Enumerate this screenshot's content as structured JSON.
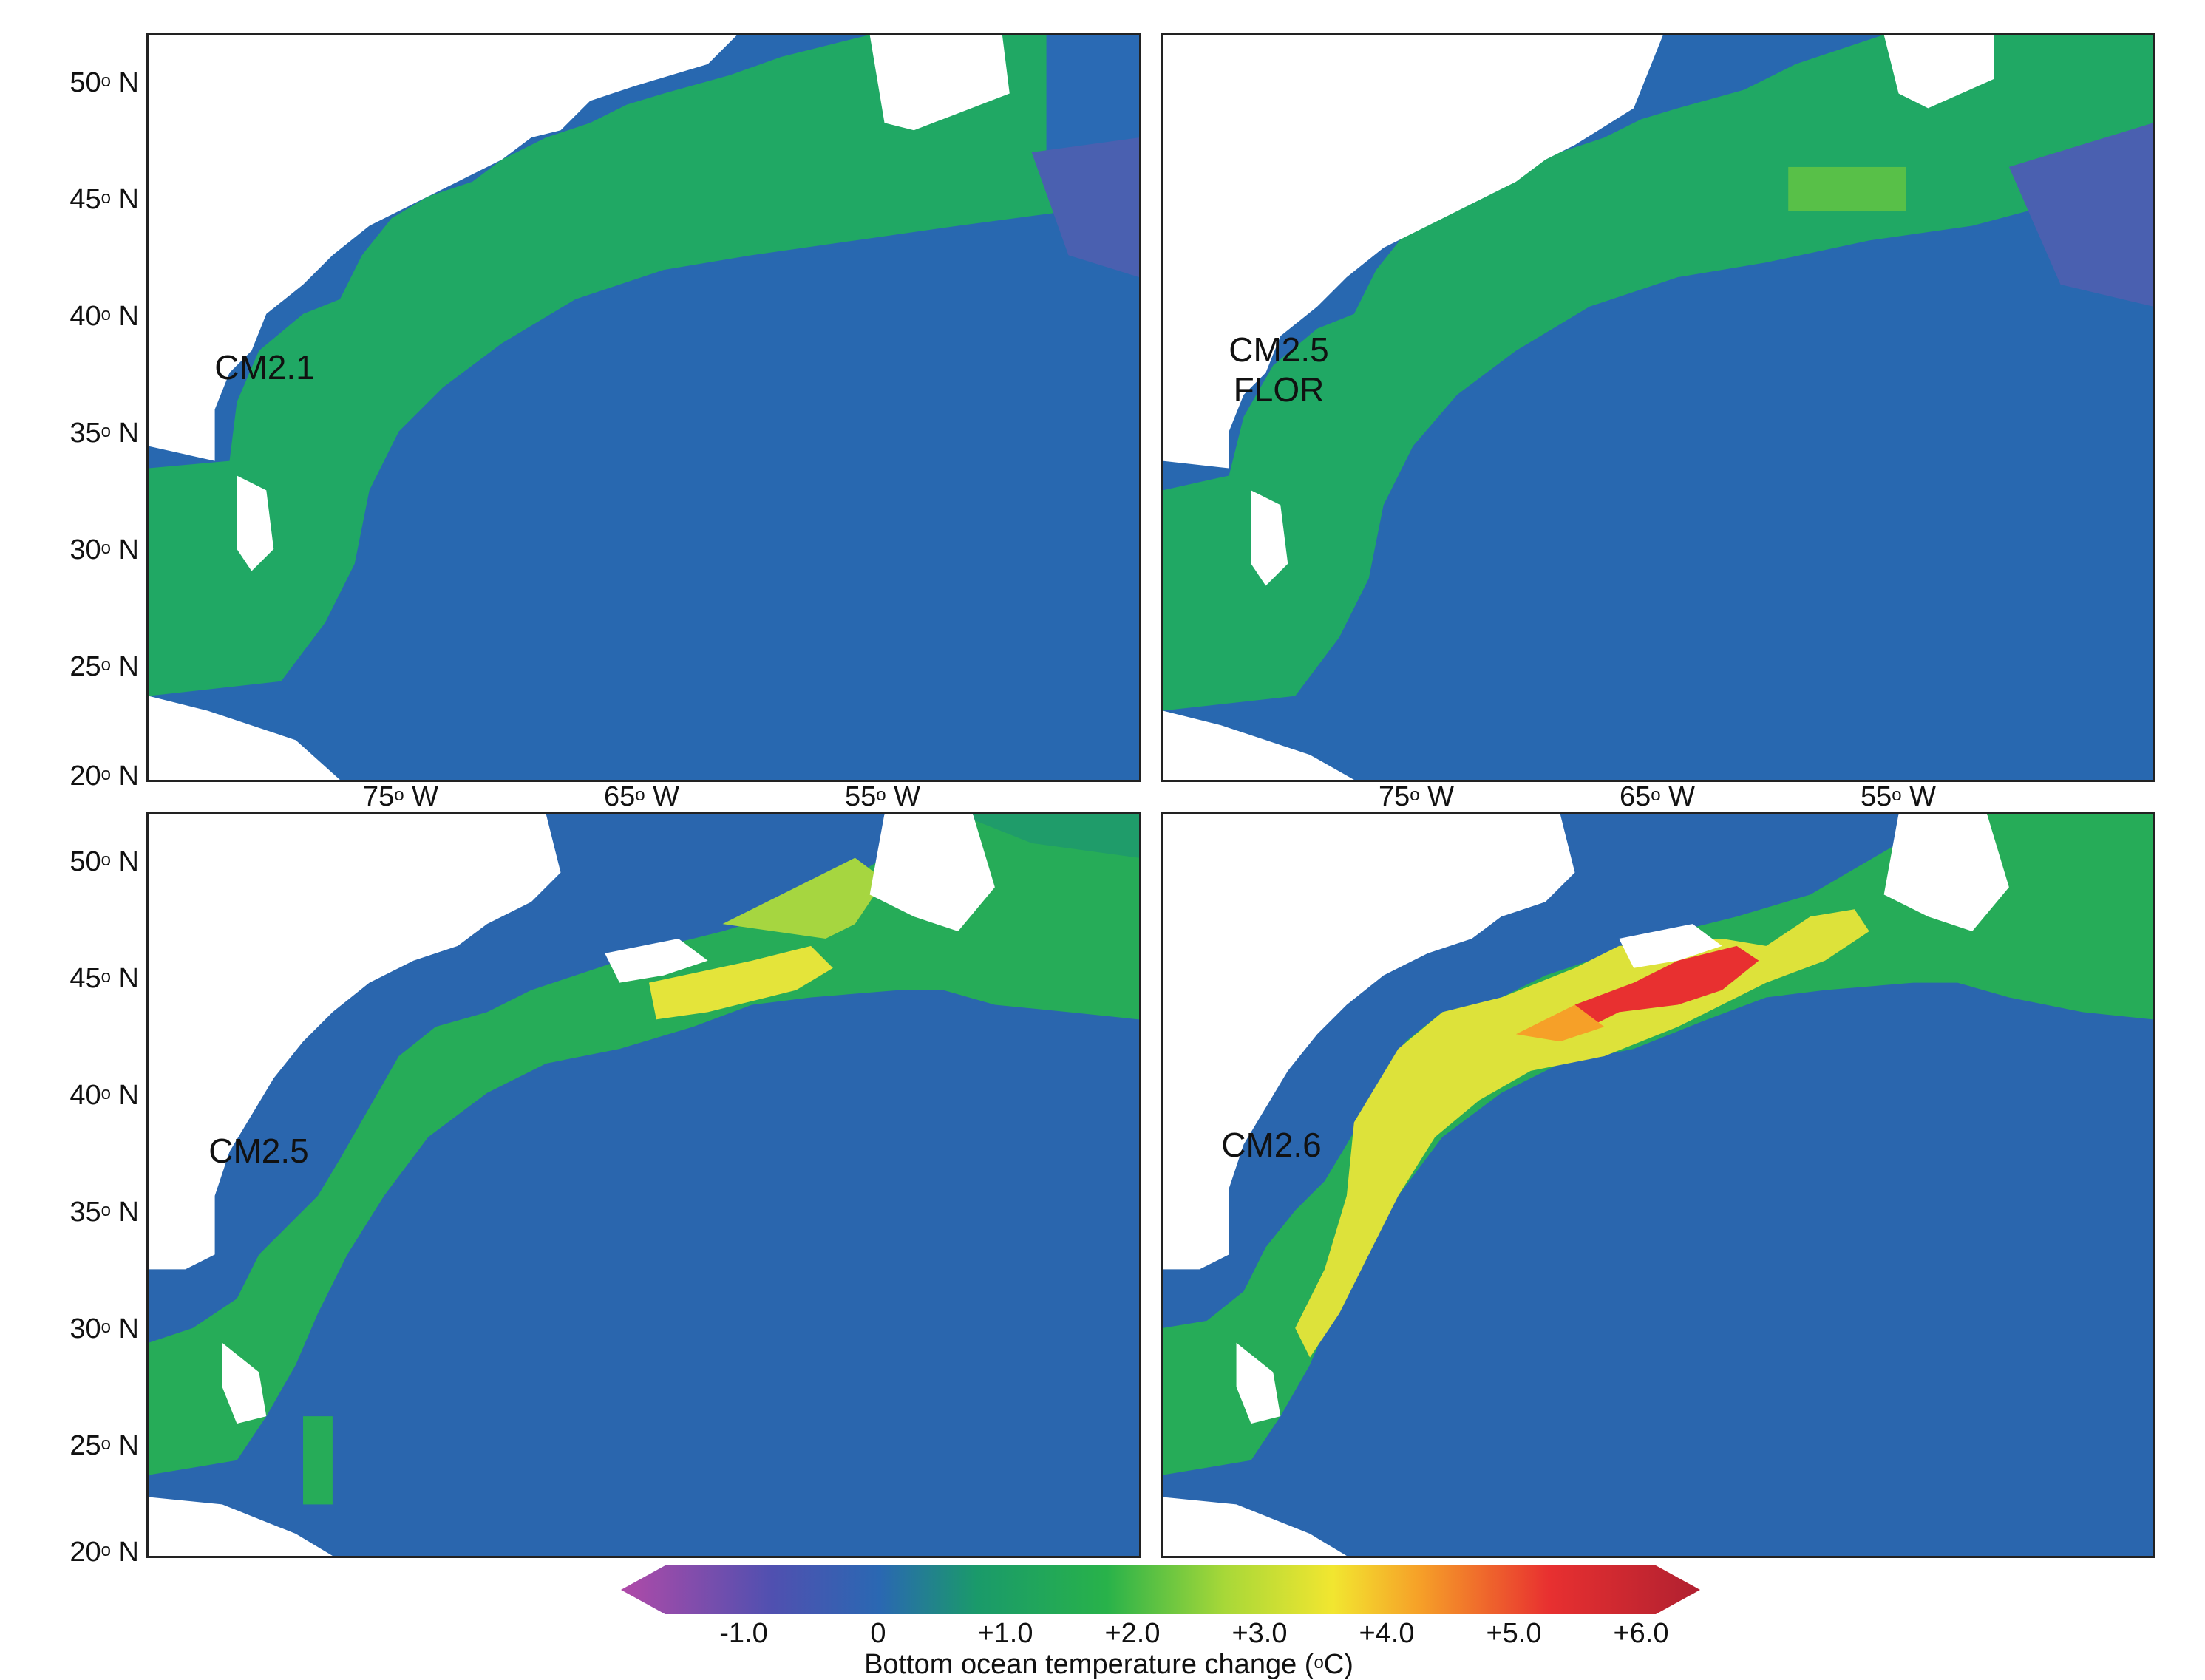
{
  "panels": [
    {
      "id": "cm21",
      "label_lines": [
        "CM2.1"
      ]
    },
    {
      "id": "cm25flor",
      "label_lines": [
        "CM2.5",
        "FLOR"
      ]
    },
    {
      "id": "cm25",
      "label_lines": [
        "CM2.5"
      ]
    },
    {
      "id": "cm26",
      "label_lines": [
        "CM2.6"
      ]
    }
  ],
  "lat_labels": [
    "50",
    "45",
    "40",
    "35",
    "30",
    "25",
    "20"
  ],
  "lat_suffix": "o",
  "lat_unit": " N",
  "lon_labels": [
    "75",
    "65",
    "55"
  ],
  "lon_unit": " W",
  "colorbar": {
    "ticks": [
      "-1.0",
      "0",
      "+1.0",
      "+2.0",
      "+3.0",
      "+4.0",
      "+5.0",
      "+6.0"
    ],
    "title_prefix": "Bottom ocean temperature change (",
    "title_sup": "o",
    "title_suffix": "C)",
    "colors": [
      "#b04aa8",
      "#5050b0",
      "#2a68b2",
      "#1a9a6a",
      "#28b24a",
      "#a8d838",
      "#f2e630",
      "#f6a028",
      "#e83030",
      "#b02030"
    ]
  }
}
